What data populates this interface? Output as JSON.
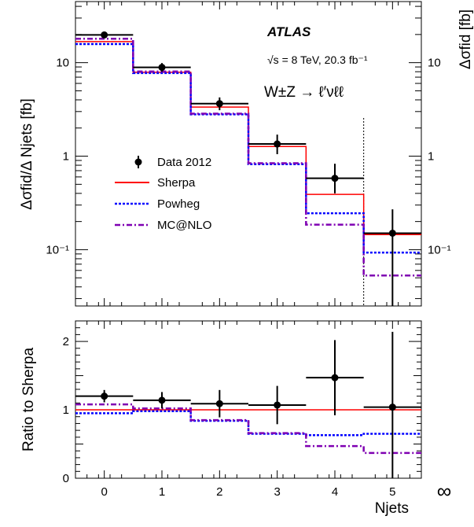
{
  "chart_data": [
    {
      "type": "step",
      "panel": "top",
      "ylabel": "Δσfid/Δ Njets [fb]",
      "ylabel_right": "Δσfid [fb]",
      "yscale": "log",
      "ylim": [
        0.025,
        45
      ],
      "yticks": [
        "10⁻¹",
        "1",
        "10"
      ],
      "xlim": [
        -0.5,
        5.5
      ],
      "experiment": "ATLAS",
      "energy_label": "√s = 8 TeV, 20.3 fb⁻¹",
      "process_label": "W±Z → ℓ′νℓℓ",
      "legend": [
        "Data 2012",
        "Sherpa",
        "Powheg",
        "MC@NLO"
      ],
      "legend_position": "left-center",
      "bin_edges": [
        -0.5,
        0.5,
        1.5,
        2.5,
        3.5,
        4.5,
        5.5
      ],
      "data": {
        "name": "Data 2012",
        "x": [
          0,
          1,
          2,
          3,
          4,
          5
        ],
        "y": [
          19.8,
          8.9,
          3.65,
          1.35,
          0.58,
          0.15
        ],
        "yerr_low": [
          1.3,
          0.9,
          0.55,
          0.3,
          0.18,
          0.15
        ],
        "yerr_high": [
          1.5,
          1.0,
          0.6,
          0.35,
          0.25,
          0.12
        ]
      },
      "series": [
        {
          "name": "Sherpa",
          "values": [
            16.8,
            7.9,
            3.35,
            1.27,
            0.39,
            0.145
          ],
          "color": "#ff0000",
          "dash": "solid"
        },
        {
          "name": "Powheg",
          "values": [
            15.8,
            7.75,
            2.8,
            0.82,
            0.245,
            0.093
          ],
          "color": "#0000ff",
          "dash": "dotted"
        },
        {
          "name": "MC@NLO",
          "values": [
            18.0,
            8.05,
            2.85,
            0.84,
            0.185,
            0.053
          ],
          "color": "#7f00b2",
          "dash": "dashdot"
        }
      ],
      "divider_x": 4.5
    },
    {
      "type": "step",
      "panel": "bottom",
      "ylabel": "Ratio to Sherpa",
      "xlabel": "Njets",
      "ylim": [
        0,
        2.3
      ],
      "yticks": [
        "0",
        "1",
        "2"
      ],
      "xlim": [
        -0.5,
        5.5
      ],
      "xticks": [
        "0",
        "1",
        "2",
        "3",
        "4",
        "5",
        "∞"
      ],
      "bin_edges": [
        -0.5,
        0.5,
        1.5,
        2.5,
        3.5,
        4.5,
        5.5
      ],
      "data": {
        "name": "Data 2012",
        "x": [
          0,
          1,
          2,
          3,
          4,
          5
        ],
        "y": [
          1.2,
          1.14,
          1.09,
          1.07,
          1.47,
          1.04
        ],
        "yerr_low": [
          0.09,
          0.12,
          0.2,
          0.28,
          0.55,
          1.04
        ],
        "yerr_high": [
          0.09,
          0.12,
          0.2,
          0.28,
          0.55,
          1.1
        ]
      },
      "series": [
        {
          "name": "Sherpa",
          "values": [
            1.0,
            1.0,
            1.0,
            1.0,
            1.0,
            1.0
          ],
          "color": "#ff0000",
          "dash": "solid"
        },
        {
          "name": "Powheg",
          "values": [
            0.95,
            0.98,
            0.84,
            0.65,
            0.63,
            0.65
          ],
          "color": "#0000ff",
          "dash": "dotted"
        },
        {
          "name": "MC@NLO",
          "values": [
            1.08,
            1.02,
            0.85,
            0.66,
            0.47,
            0.37
          ],
          "color": "#7f00b2",
          "dash": "dashdot"
        }
      ]
    }
  ]
}
